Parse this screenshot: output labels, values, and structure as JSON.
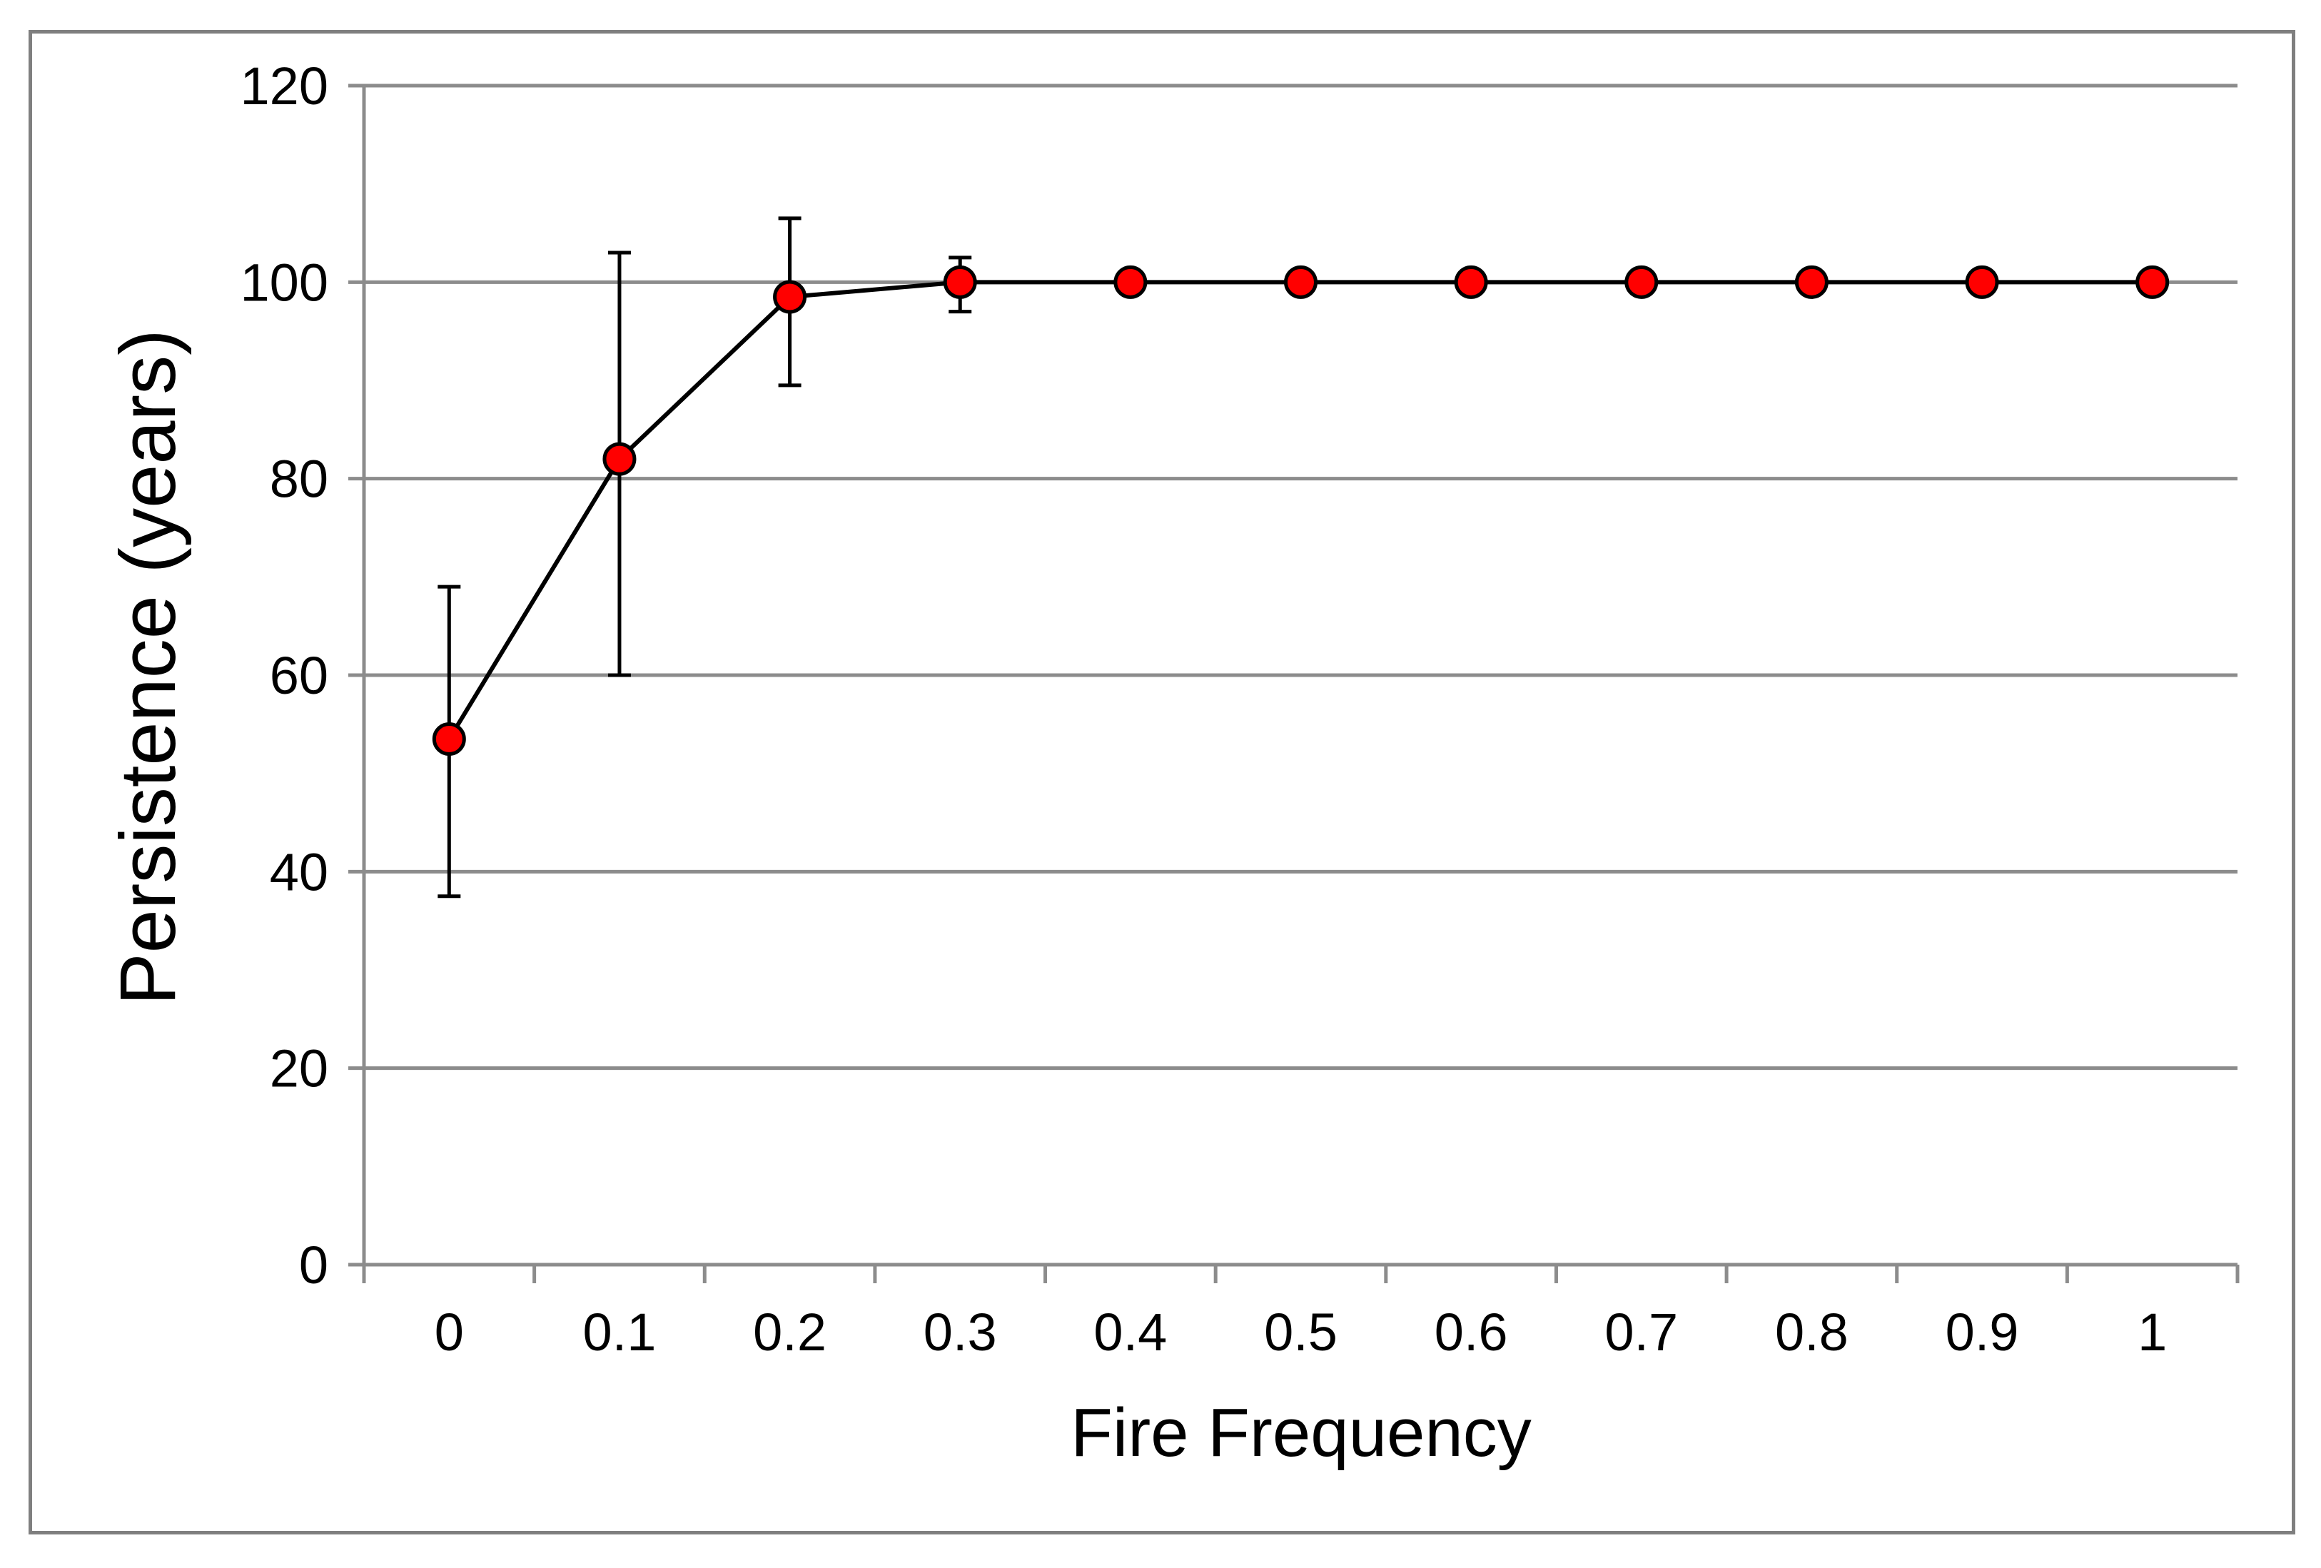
{
  "chart_data": {
    "type": "line",
    "title": "",
    "xlabel": "Fire Frequency",
    "ylabel": "Persistence (years)",
    "categories": [
      "0",
      "0.1",
      "0.2",
      "0.3",
      "0.4",
      "0.5",
      "0.6",
      "0.7",
      "0.8",
      "0.9",
      "1"
    ],
    "ylim": [
      0,
      120
    ],
    "yticks": [
      "0",
      "20",
      "40",
      "60",
      "80",
      "100",
      "120"
    ],
    "grid": true,
    "legend": "none",
    "series": [
      {
        "values": [
          53.5,
          82,
          98.5,
          100,
          100,
          100,
          100,
          100,
          100,
          100,
          100
        ],
        "error_low": [
          37.5,
          60,
          89.5,
          97,
          100,
          100,
          100,
          100,
          100,
          100,
          100
        ],
        "error_high": [
          69,
          103,
          106.5,
          102.5,
          100,
          100,
          100,
          100,
          100,
          100,
          100
        ],
        "marker_color": "#ff0000",
        "line_color": "#000000"
      }
    ],
    "colors": {
      "grid": "#8c8c8c",
      "axis": "#8c8c8c",
      "frame": "#7f7f7f"
    }
  }
}
